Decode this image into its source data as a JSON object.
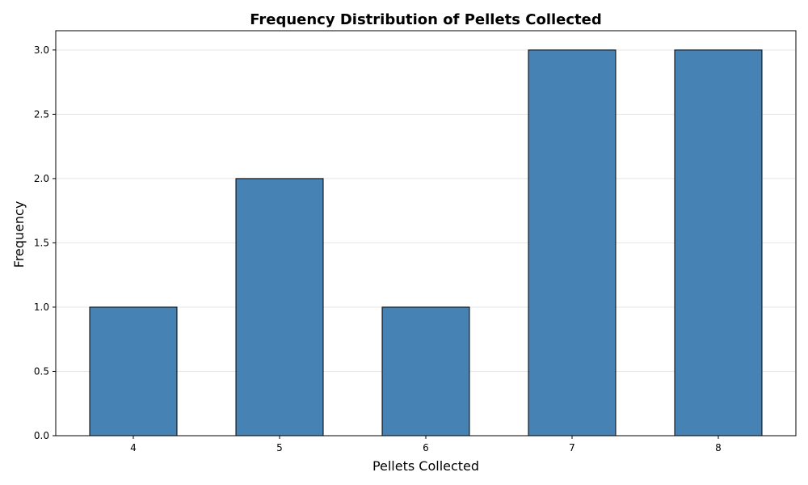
{
  "chart_data": {
    "type": "bar",
    "title": "Frequency Distribution of Pellets Collected",
    "xlabel": "Pellets Collected",
    "ylabel": "Frequency",
    "categories": [
      "4",
      "5",
      "6",
      "7",
      "8"
    ],
    "values": [
      1,
      2,
      1,
      3,
      3
    ],
    "ylim": [
      0,
      3.15
    ],
    "yticks": [
      "0.0",
      "0.5",
      "1.0",
      "1.5",
      "2.0",
      "2.5",
      "3.0"
    ],
    "grid": "y",
    "bar_color": "#4682b4",
    "edge_color": "#000000"
  }
}
